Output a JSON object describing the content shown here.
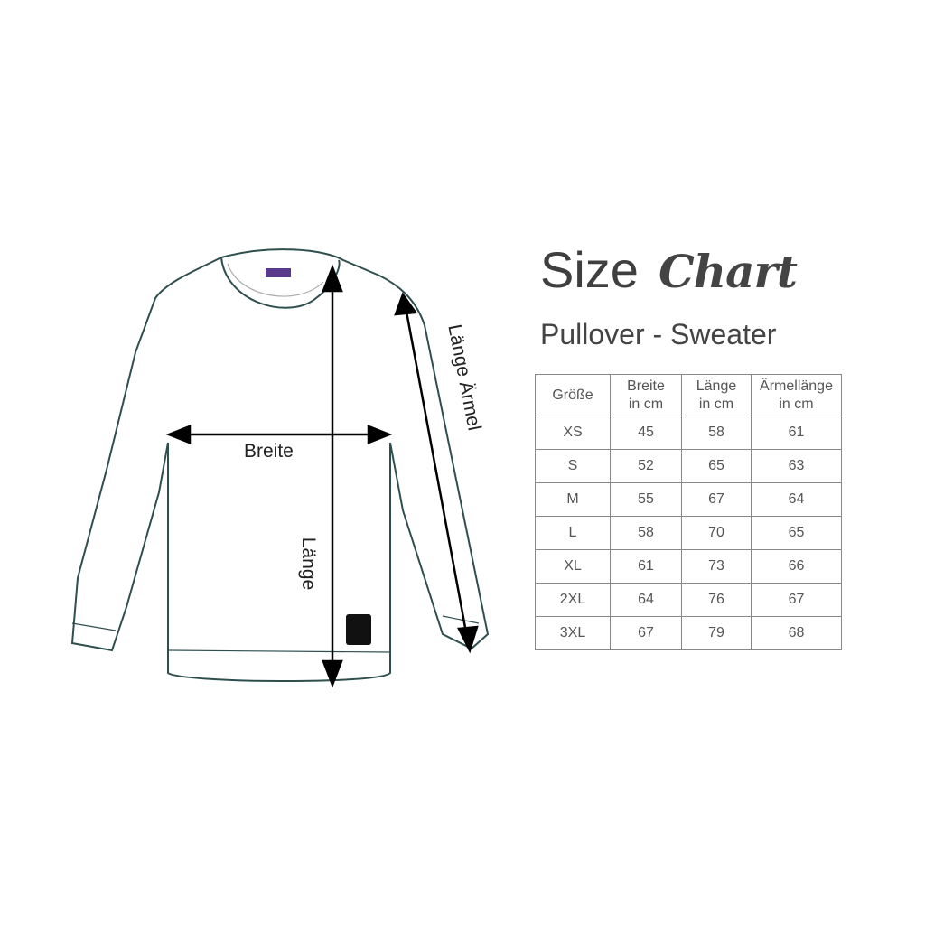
{
  "title": {
    "word1": "Size",
    "word2": "Chart"
  },
  "subtitle": "Pullover - Sweater",
  "diagram": {
    "labels": {
      "width": "Breite",
      "length": "Länge",
      "sleeve_length": "Länge Ärmel"
    },
    "colors": {
      "outline": "#2f4f4f",
      "arrow": "#000000",
      "tag": "#5a3a8a"
    }
  },
  "table": {
    "headers": [
      {
        "line1": "Größe",
        "line2": ""
      },
      {
        "line1": "Breite",
        "line2": "in cm"
      },
      {
        "line1": "Länge",
        "line2": "in cm"
      },
      {
        "line1": "Ärmellänge",
        "line2": "in cm"
      }
    ],
    "rows": [
      [
        "XS",
        "45",
        "58",
        "61"
      ],
      [
        "S",
        "52",
        "65",
        "63"
      ],
      [
        "M",
        "55",
        "67",
        "64"
      ],
      [
        "L",
        "58",
        "70",
        "65"
      ],
      [
        "XL",
        "61",
        "73",
        "66"
      ],
      [
        "2XL",
        "64",
        "76",
        "67"
      ],
      [
        "3XL",
        "67",
        "79",
        "68"
      ]
    ]
  }
}
